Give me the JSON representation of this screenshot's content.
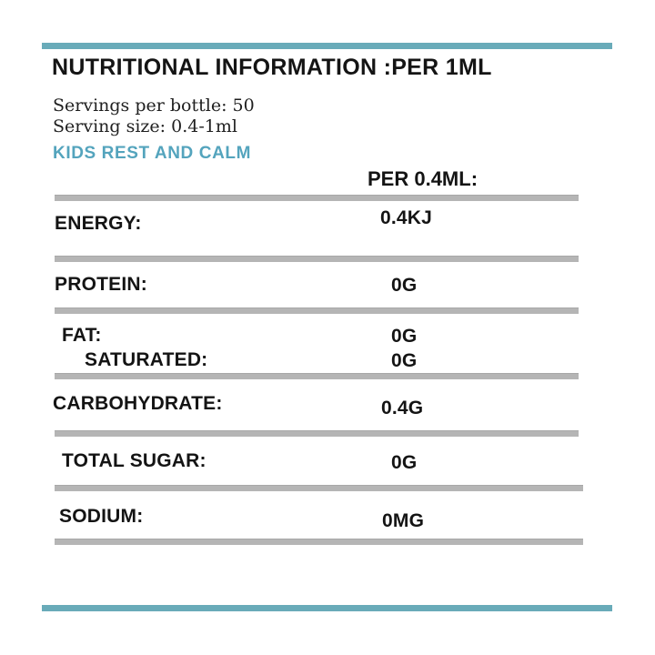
{
  "colors": {
    "accent_teal": "#69abb9",
    "product_name_teal": "#54a4bd",
    "divider_gray": "#b5b5b5",
    "text_black": "#141414"
  },
  "header": {
    "title": "NUTRITIONAL INFORMATION :PER 1ML",
    "servings_per_bottle": "Servings per bottle: 50",
    "serving_size": "Serving size: 0.4-1ml",
    "product_line": "KIDS REST AND CALM",
    "column_header": "PER 0.4ML:"
  },
  "table": {
    "rows": [
      {
        "label": "ENERGY:",
        "value": "0.4KJ"
      },
      {
        "label": "PROTEIN:",
        "value": "0G"
      },
      {
        "label": "FAT:",
        "value": "0G"
      },
      {
        "label": "SATURATED:",
        "value": "0G"
      },
      {
        "label": "CARBOHYDRATE:",
        "value": "0.4G"
      },
      {
        "label": "TOTAL SUGAR:",
        "value": "0G"
      },
      {
        "label": "SODIUM:",
        "value": "0MG"
      }
    ]
  }
}
